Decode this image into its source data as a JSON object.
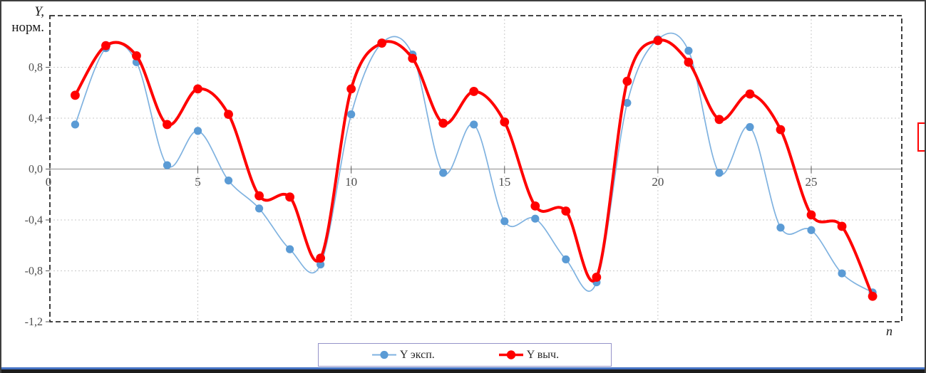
{
  "figure": {
    "y_axis_title_line1": "Y,",
    "y_axis_title_line2": "норм.",
    "x_axis_title": "n"
  },
  "legend": {
    "border_color": "#9593c9",
    "items": [
      {
        "label": "Y эксп."
      },
      {
        "label": "Y выч."
      }
    ]
  },
  "decorations": {
    "red_annotation_box_color": "#ff0000",
    "bottom_line_color": "#4472C4"
  },
  "chart_data": {
    "type": "line",
    "smooth": true,
    "grid": true,
    "legend_position": "bottom",
    "title": "",
    "xlabel": "n",
    "ylabel": "Y, норм.",
    "xlim": [
      0,
      28
    ],
    "ylim": [
      -1.2,
      1.2
    ],
    "x": [
      1,
      2,
      3,
      4,
      5,
      6,
      7,
      8,
      9,
      10,
      11,
      12,
      13,
      14,
      15,
      16,
      17,
      18,
      19,
      20,
      21,
      22,
      23,
      24,
      25,
      26,
      27
    ],
    "series": [
      {
        "name": "Y эксп.",
        "color": "#5B9BD5",
        "line_color": "#7FB2E0",
        "values": [
          0.35,
          0.95,
          0.84,
          0.03,
          0.3,
          -0.09,
          -0.31,
          -0.63,
          -0.75,
          0.43,
          0.99,
          0.9,
          -0.03,
          0.35,
          -0.41,
          -0.39,
          -0.71,
          -0.89,
          0.52,
          1.02,
          0.93,
          -0.03,
          0.33,
          -0.46,
          -0.48,
          -0.82,
          -0.97
        ]
      },
      {
        "name": "Y выч.",
        "color": "#FF0000",
        "line_color": "#FF0000",
        "values": [
          0.58,
          0.97,
          0.89,
          0.35,
          0.63,
          0.43,
          -0.21,
          -0.22,
          -0.7,
          0.63,
          0.99,
          0.87,
          0.36,
          0.61,
          0.37,
          -0.29,
          -0.33,
          -0.85,
          0.69,
          1.01,
          0.84,
          0.39,
          0.59,
          0.31,
          -0.36,
          -0.45,
          -1.0
        ]
      }
    ],
    "x_ticks": [
      {
        "value": 0,
        "label": "0"
      },
      {
        "value": 5,
        "label": "5"
      },
      {
        "value": 10,
        "label": "10"
      },
      {
        "value": 15,
        "label": "15"
      },
      {
        "value": 20,
        "label": "20"
      },
      {
        "value": 25,
        "label": "25"
      }
    ],
    "y_ticks": [
      {
        "value": 0.8,
        "label": "0,8"
      },
      {
        "value": 0.4,
        "label": "0,4"
      },
      {
        "value": 0.0,
        "label": "0,0"
      },
      {
        "value": -0.4,
        "label": "-0,4"
      },
      {
        "value": -0.8,
        "label": "-0,8"
      },
      {
        "value": -1.2,
        "label": "-1,2"
      }
    ]
  }
}
